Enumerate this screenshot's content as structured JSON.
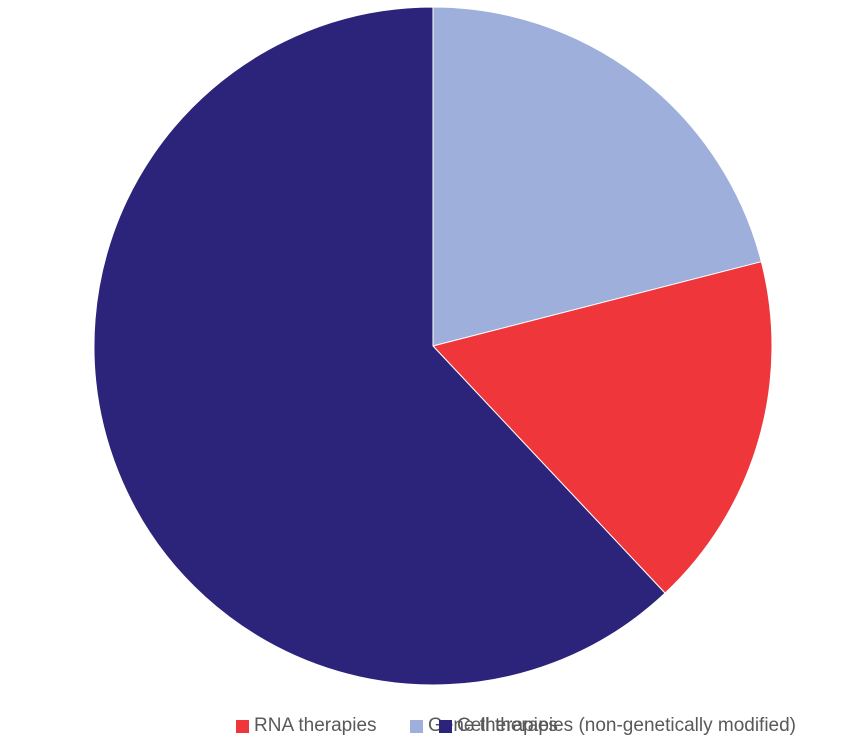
{
  "chart_data": {
    "type": "pie",
    "title": "",
    "start_angle_deg": 0,
    "direction": "clockwise",
    "slices": [
      {
        "label": "Gene therapies",
        "value": 21,
        "color": "#9dafda"
      },
      {
        "label": "RNA therapies",
        "value": 17,
        "color": "#ee363b"
      },
      {
        "label": "Cell therapies (non-genetically modified)",
        "value": 62,
        "color": "#2c247a"
      }
    ],
    "legend": {
      "position": "bottom"
    }
  }
}
